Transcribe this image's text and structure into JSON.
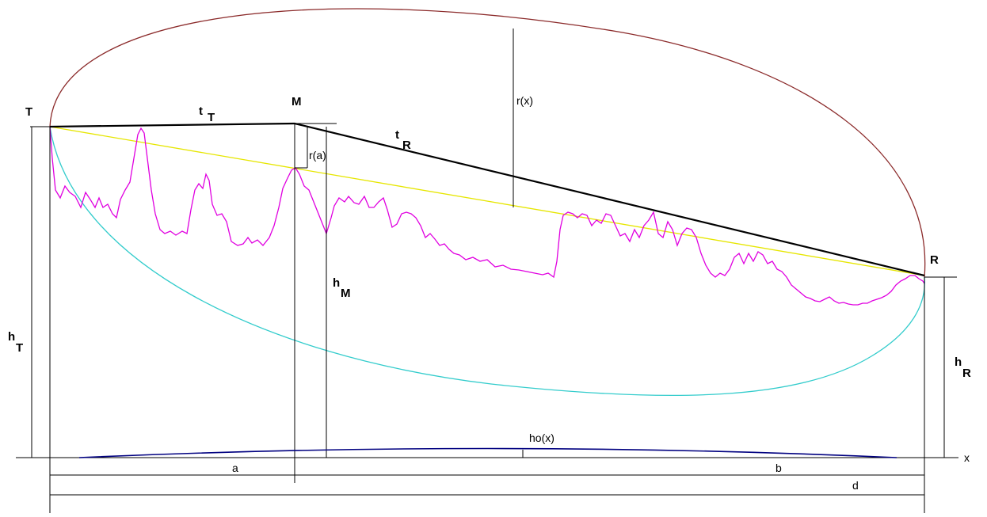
{
  "colors": {
    "background": "#ffffff",
    "ellipse": "#8b2a2a",
    "cyan_curve": "#33cccc",
    "yellow_line": "#e6e600",
    "terrain": "#e000e0",
    "earth_bulge": "#000080",
    "lines": "#000000"
  },
  "labels": {
    "T": "T",
    "M": "M",
    "R": "R",
    "x": "x",
    "tT_main": "t",
    "tT_sub": "T",
    "tR_main": "t",
    "tR_sub": "R",
    "rx": "r(x)",
    "ra": "r(a)",
    "hM_main": "h",
    "hM_sub": "M",
    "hT_main": "h",
    "hT_sub": "T",
    "hR_main": "h",
    "hR_sub": "R",
    "hox": "ho(x)",
    "a": "a",
    "b": "b",
    "d": "d"
  }
}
